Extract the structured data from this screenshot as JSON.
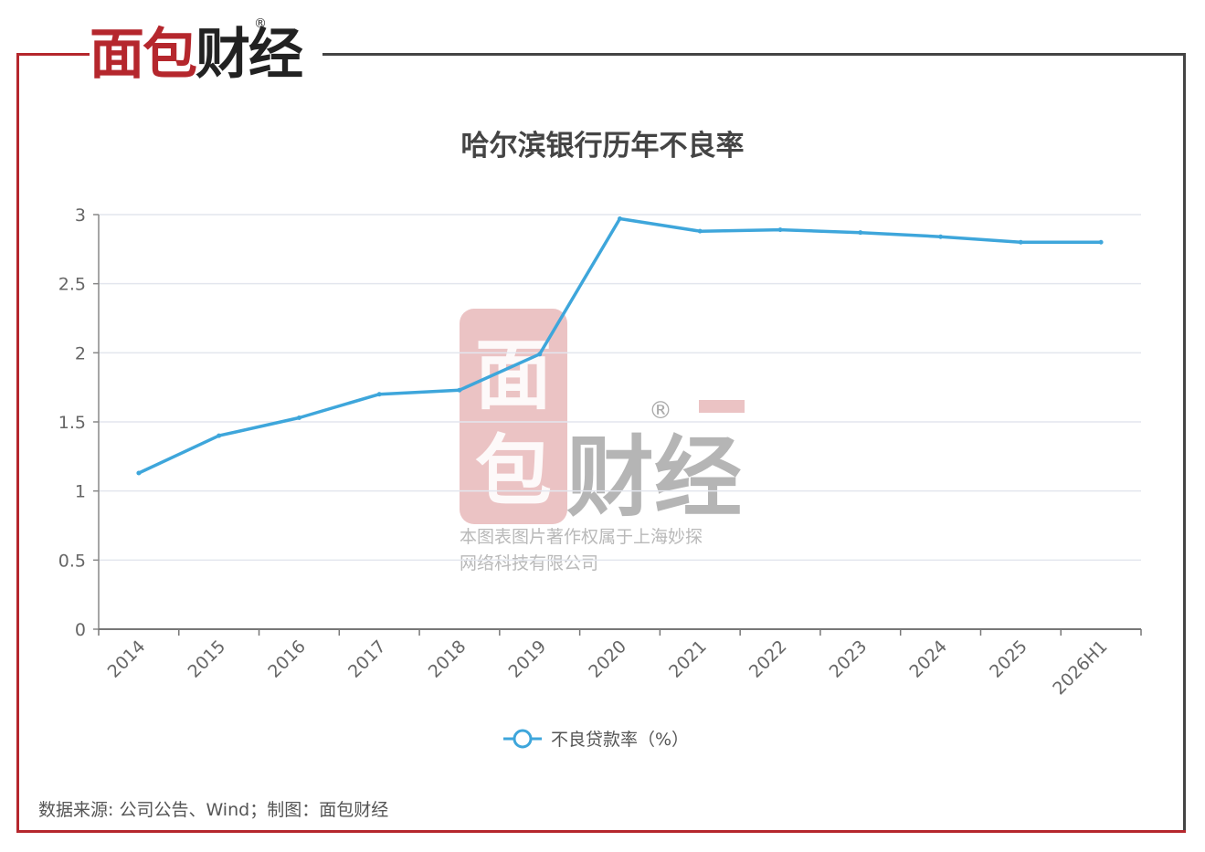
{
  "brand": {
    "logo_red": "面包",
    "logo_dark": "财经",
    "registered": "®",
    "red_color": "#b5272d"
  },
  "watermark": {
    "line1": "本图表图片著作权属于上海妙探",
    "line2": "网络科技有限公司"
  },
  "source_text": "数据来源: 公司公告、Wind；制图：面包财经",
  "chart_data": {
    "type": "line",
    "title": "哈尔滨银行历年不良率",
    "categories": [
      "2014",
      "2015",
      "2016",
      "2017",
      "2018",
      "2019",
      "2020",
      "2021",
      "2022",
      "2023",
      "2024",
      "2025",
      "2026H1"
    ],
    "series": [
      {
        "name": "不良贷款率（%）",
        "color": "#3ea6db",
        "values": [
          1.13,
          1.4,
          1.53,
          1.7,
          1.73,
          1.99,
          2.97,
          2.88,
          2.89,
          2.87,
          2.84,
          2.8,
          2.8
        ]
      }
    ],
    "y_ticks": [
      "0",
      "0.5",
      "1",
      "1.5",
      "2",
      "2.5",
      "3"
    ],
    "ylim": [
      0,
      3
    ],
    "grid": true,
    "legend_position": "bottom"
  }
}
